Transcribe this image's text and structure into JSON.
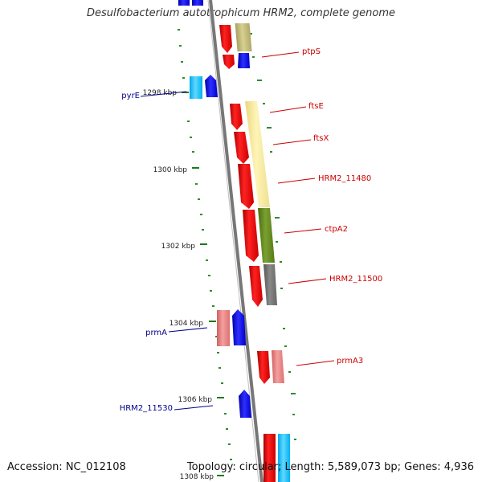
{
  "title": "Desulfobacterium autotrophicum HRM2, complete genome",
  "footer": {
    "accession": "Accession: NC_012108",
    "summary": "Topology: circular; Length: 5,589,073 bp; Genes: 4,936"
  },
  "ticks": [
    "1298 kbp",
    "1300 kbp",
    "1302 kbp",
    "1304 kbp",
    "1306 kbp",
    "1308 kbp"
  ],
  "genes_forward": [
    "ptpS",
    "ftsE",
    "ftsX",
    "HRM2_11480",
    "ctpA2",
    "HRM2_11500",
    "prmA3"
  ],
  "genes_reverse": [
    "pyrE",
    "prmA",
    "HRM2_11530"
  ],
  "colors": {
    "forward_label": "#cc0000",
    "reverse_label": "#00008b",
    "backbone": "#808080",
    "tick": "#1a7a1a",
    "dot": "#2e8b2e"
  }
}
